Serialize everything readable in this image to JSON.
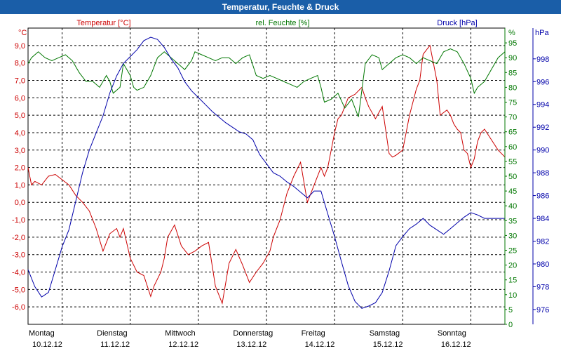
{
  "chart_data": {
    "type": "line",
    "title": "Temperatur, Feuchte & Druck",
    "grid": true,
    "colors": {
      "temperature": "#cc0000",
      "humidity": "#007700",
      "pressure": "#0000aa",
      "title_bg": "#1a5ea8"
    },
    "axes": {
      "temperature": {
        "label": "Temperatur [°C]",
        "unit": "°C",
        "range": [
          -7,
          10
        ],
        "ticks": [
          "9,0",
          "8,0",
          "7,0",
          "6,0",
          "5,0",
          "4,0",
          "3,0",
          "2,0",
          "1,0",
          "0,0",
          "-1,0",
          "-2,0",
          "-3,0",
          "-4,0",
          "-5,0",
          "-6,0"
        ]
      },
      "humidity": {
        "label": "rel. Feuchte [%]",
        "unit": "%",
        "range": [
          0,
          100
        ],
        "ticks": [
          "95",
          "90",
          "85",
          "80",
          "75",
          "70",
          "65",
          "60",
          "55",
          "50",
          "45",
          "40",
          "35",
          "30",
          "25",
          "20",
          "15",
          "10",
          "5",
          "0"
        ]
      },
      "pressure": {
        "label": "Druck [hPa]",
        "unit": "hPa",
        "range": [
          974.7,
          1000.7
        ],
        "ticks": [
          "998",
          "996",
          "994",
          "992",
          "990",
          "988",
          "986",
          "984",
          "982",
          "980",
          "978",
          "976"
        ]
      }
    },
    "x_range": [
      0,
      7
    ],
    "x_labels": [
      {
        "day": "Montag",
        "date": "10.12.12"
      },
      {
        "day": "Dienstag",
        "date": "11.12.12"
      },
      {
        "day": "Mittwoch",
        "date": "12.12.12"
      },
      {
        "day": "Donnerstag",
        "date": "13.12.12"
      },
      {
        "day": "Freitag",
        "date": "14.12.12"
      },
      {
        "day": "Samstag",
        "date": "15.12.12"
      },
      {
        "day": "Sonntag",
        "date": "16.12.12"
      }
    ],
    "series": [
      {
        "name": "Temperatur [°C]",
        "axis": "temperature",
        "color": "#cc0000",
        "x": [
          0,
          0.05,
          0.1,
          0.2,
          0.3,
          0.4,
          0.5,
          0.6,
          0.7,
          0.8,
          0.9,
          1.0,
          1.1,
          1.2,
          1.3,
          1.35,
          1.4,
          1.5,
          1.6,
          1.7,
          1.8,
          1.85,
          1.95,
          2.0,
          2.05,
          2.15,
          2.25,
          2.35,
          2.45,
          2.55,
          2.65,
          2.75,
          2.85,
          2.95,
          3.05,
          3.15,
          3.25,
          3.35,
          3.45,
          3.55,
          3.6,
          3.7,
          3.8,
          3.9,
          4.0,
          4.1,
          4.2,
          4.3,
          4.35,
          4.4,
          4.45,
          4.5,
          4.55,
          4.6,
          4.65,
          4.7,
          4.8,
          4.9,
          4.95,
          5.0,
          5.1,
          5.2,
          5.3,
          5.35,
          5.4,
          5.5,
          5.6,
          5.7,
          5.75,
          5.8,
          5.9,
          6.0,
          6.05,
          6.15,
          6.2,
          6.25,
          6.3,
          6.35,
          6.4,
          6.45,
          6.5,
          6.55,
          6.6,
          6.65,
          6.7,
          6.8,
          6.9,
          7.0
        ],
        "y": [
          2.0,
          1.0,
          1.2,
          1.0,
          1.5,
          1.6,
          1.3,
          1.0,
          0.4,
          0.0,
          -0.5,
          -1.5,
          -2.8,
          -1.8,
          -1.5,
          -2.0,
          -1.5,
          -3.2,
          -4.0,
          -4.2,
          -5.4,
          -4.8,
          -4.0,
          -3.2,
          -2.0,
          -1.3,
          -2.5,
          -3.0,
          -2.8,
          -2.5,
          -2.3,
          -4.8,
          -5.8,
          -3.5,
          -2.7,
          -3.6,
          -4.6,
          -4.0,
          -3.5,
          -2.8,
          -2.0,
          -1.0,
          0.5,
          1.5,
          2.3,
          0.0,
          1.0,
          2.0,
          1.5,
          2.0,
          3.0,
          4.0,
          4.8,
          5.0,
          5.5,
          6.0,
          6.2,
          6.6,
          6.0,
          5.5,
          4.8,
          5.5,
          2.8,
          2.6,
          2.7,
          3.0,
          5.0,
          6.5,
          7.0,
          8.5,
          9.0,
          7.0,
          5.0,
          5.3,
          5.0,
          4.5,
          4.2,
          4.0,
          3.0,
          2.8,
          2.0,
          2.5,
          3.5,
          4.0,
          4.2,
          3.6,
          3.0,
          2.6
        ]
      },
      {
        "name": "rel. Feuchte [%]",
        "axis": "humidity",
        "color": "#007700",
        "x": [
          0,
          0.05,
          0.15,
          0.25,
          0.35,
          0.45,
          0.55,
          0.65,
          0.75,
          0.85,
          0.95,
          1.05,
          1.15,
          1.2,
          1.25,
          1.35,
          1.4,
          1.5,
          1.55,
          1.6,
          1.7,
          1.8,
          1.9,
          2.0,
          2.1,
          2.2,
          2.3,
          2.4,
          2.45,
          2.55,
          2.65,
          2.75,
          2.85,
          2.95,
          3.05,
          3.15,
          3.25,
          3.35,
          3.45,
          3.55,
          3.65,
          3.75,
          3.85,
          3.95,
          4.05,
          4.15,
          4.25,
          4.3,
          4.35,
          4.45,
          4.55,
          4.65,
          4.75,
          4.85,
          4.95,
          5.05,
          5.15,
          5.2,
          5.3,
          5.4,
          5.5,
          5.6,
          5.7,
          5.8,
          5.9,
          6.0,
          6.1,
          6.2,
          6.3,
          6.4,
          6.5,
          6.55,
          6.6,
          6.7,
          6.8,
          6.9,
          7.0
        ],
        "y": [
          88,
          90,
          92,
          90,
          89,
          90,
          91,
          89,
          85,
          82,
          82,
          80,
          84,
          82,
          78,
          80,
          88,
          84,
          80,
          79,
          80,
          84,
          90,
          92,
          90,
          88,
          86,
          89,
          92,
          91,
          90,
          89,
          90,
          90,
          88,
          90,
          91,
          84,
          83,
          84,
          83,
          82,
          81,
          80,
          82,
          83,
          84,
          80,
          75,
          76,
          78,
          73,
          76,
          70,
          88,
          91,
          90,
          86,
          88,
          90,
          91,
          90,
          88,
          90,
          89,
          88,
          92,
          93,
          92,
          88,
          83,
          78,
          80,
          82,
          86,
          90,
          92
        ]
      },
      {
        "name": "Druck [hPa]",
        "axis": "pressure",
        "color": "#0000aa",
        "x": [
          0,
          0.1,
          0.2,
          0.3,
          0.4,
          0.5,
          0.6,
          0.7,
          0.8,
          0.9,
          1.0,
          1.1,
          1.2,
          1.3,
          1.4,
          1.5,
          1.6,
          1.7,
          1.8,
          1.9,
          2.0,
          2.1,
          2.2,
          2.3,
          2.4,
          2.5,
          2.6,
          2.7,
          2.8,
          2.9,
          3.0,
          3.1,
          3.2,
          3.3,
          3.4,
          3.5,
          3.6,
          3.7,
          3.8,
          3.9,
          4.0,
          4.1,
          4.2,
          4.3,
          4.4,
          4.5,
          4.6,
          4.7,
          4.8,
          4.9,
          5.0,
          5.1,
          5.2,
          5.3,
          5.4,
          5.5,
          5.6,
          5.7,
          5.8,
          5.9,
          6.0,
          6.1,
          6.2,
          6.3,
          6.4,
          6.5,
          6.6,
          6.7,
          6.8,
          6.9,
          7.0
        ],
        "y": [
          979.5,
          978,
          977.1,
          977.5,
          979.5,
          981.5,
          983,
          985.5,
          988,
          990,
          991.5,
          993,
          995,
          996.5,
          997.6,
          998.2,
          998.8,
          999.6,
          999.9,
          999.7,
          999,
          998,
          997.2,
          996,
          995.2,
          994.6,
          994,
          993.4,
          992.9,
          992.4,
          992,
          991.6,
          991.4,
          990.9,
          989.6,
          988.8,
          988,
          987.7,
          987.2,
          986.8,
          986.3,
          985.8,
          986.4,
          986.4,
          984.4,
          982.4,
          980.2,
          978.1,
          976.7,
          976.1,
          976.3,
          976.6,
          977.5,
          979.4,
          981.6,
          982.4,
          983.1,
          983.5,
          984,
          983.4,
          983.0,
          982.6,
          983.1,
          983.6,
          984.1,
          984.5,
          984.3,
          984.0,
          984.0,
          984.0,
          984.0
        ]
      }
    ]
  }
}
